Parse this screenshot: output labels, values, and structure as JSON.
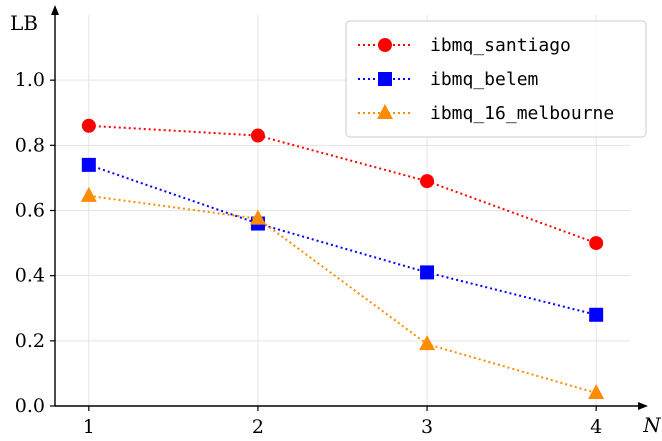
{
  "chart_data": {
    "type": "line",
    "x": [
      1,
      2,
      3,
      4
    ],
    "xlabel": "N",
    "ylabel": "LB",
    "xticks": [
      "1",
      "2",
      "3",
      "4"
    ],
    "yticks": [
      "0.0",
      "0.2",
      "0.4",
      "0.6",
      "0.8",
      "1.0"
    ],
    "xlim": [
      0.8,
      4.2
    ],
    "ylim": [
      0,
      1.2
    ],
    "grid": true,
    "legend_position": "top-right",
    "series": [
      {
        "name": "ibmq_santiago",
        "values": [
          0.86,
          0.83,
          0.69,
          0.5
        ],
        "color": "#ff0000",
        "marker": "circle",
        "linestyle": "dotted"
      },
      {
        "name": "ibmq_belem",
        "values": [
          0.74,
          0.56,
          0.41,
          0.28
        ],
        "color": "#0000ff",
        "marker": "square",
        "linestyle": "dotted"
      },
      {
        "name": "ibmq_16_melbourne",
        "values": [
          0.645,
          0.575,
          0.19,
          0.04
        ],
        "color": "#ff8c00",
        "marker": "triangle",
        "linestyle": "dotted"
      }
    ]
  }
}
